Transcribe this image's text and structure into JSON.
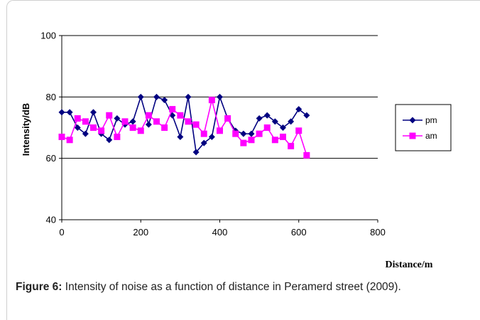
{
  "chart_data": {
    "type": "line",
    "title": "",
    "xlabel": "Distance/m",
    "ylabel": "Intensity/dB",
    "xlim": [
      0,
      800
    ],
    "ylim": [
      40,
      100
    ],
    "x_ticks": [
      "0",
      "200",
      "400",
      "600",
      "800"
    ],
    "y_ticks": [
      "40",
      "60",
      "80",
      "100"
    ],
    "grid": "horizontal",
    "legend_position": "right",
    "x": [
      0,
      20,
      40,
      60,
      80,
      100,
      120,
      140,
      160,
      180,
      200,
      220,
      240,
      260,
      280,
      300,
      320,
      340,
      360,
      380,
      400,
      420,
      440,
      460,
      480,
      500,
      520,
      540,
      560,
      580,
      600,
      620
    ],
    "series": [
      {
        "name": "pm",
        "color": "#000080",
        "marker": "diamond",
        "values": [
          75,
          75,
          70,
          68,
          75,
          68,
          66,
          73,
          71,
          72,
          80,
          71,
          80,
          79,
          74,
          67,
          80,
          62,
          65,
          67,
          80,
          73,
          69,
          68,
          68,
          73,
          74,
          72,
          70,
          72,
          76,
          74
        ]
      },
      {
        "name": "am",
        "color": "#ff00ff",
        "marker": "square",
        "values": [
          67,
          66,
          73,
          72,
          70,
          69,
          74,
          67,
          72,
          70,
          69,
          74,
          72,
          70,
          76,
          74,
          72,
          71,
          68,
          79,
          69,
          73,
          68,
          65,
          66,
          68,
          70,
          66,
          67,
          64,
          69,
          61
        ]
      }
    ]
  },
  "caption": {
    "label": "Figure 6:",
    "text": " Intensity of noise as a function of distance in Peramerd street (2009)."
  }
}
